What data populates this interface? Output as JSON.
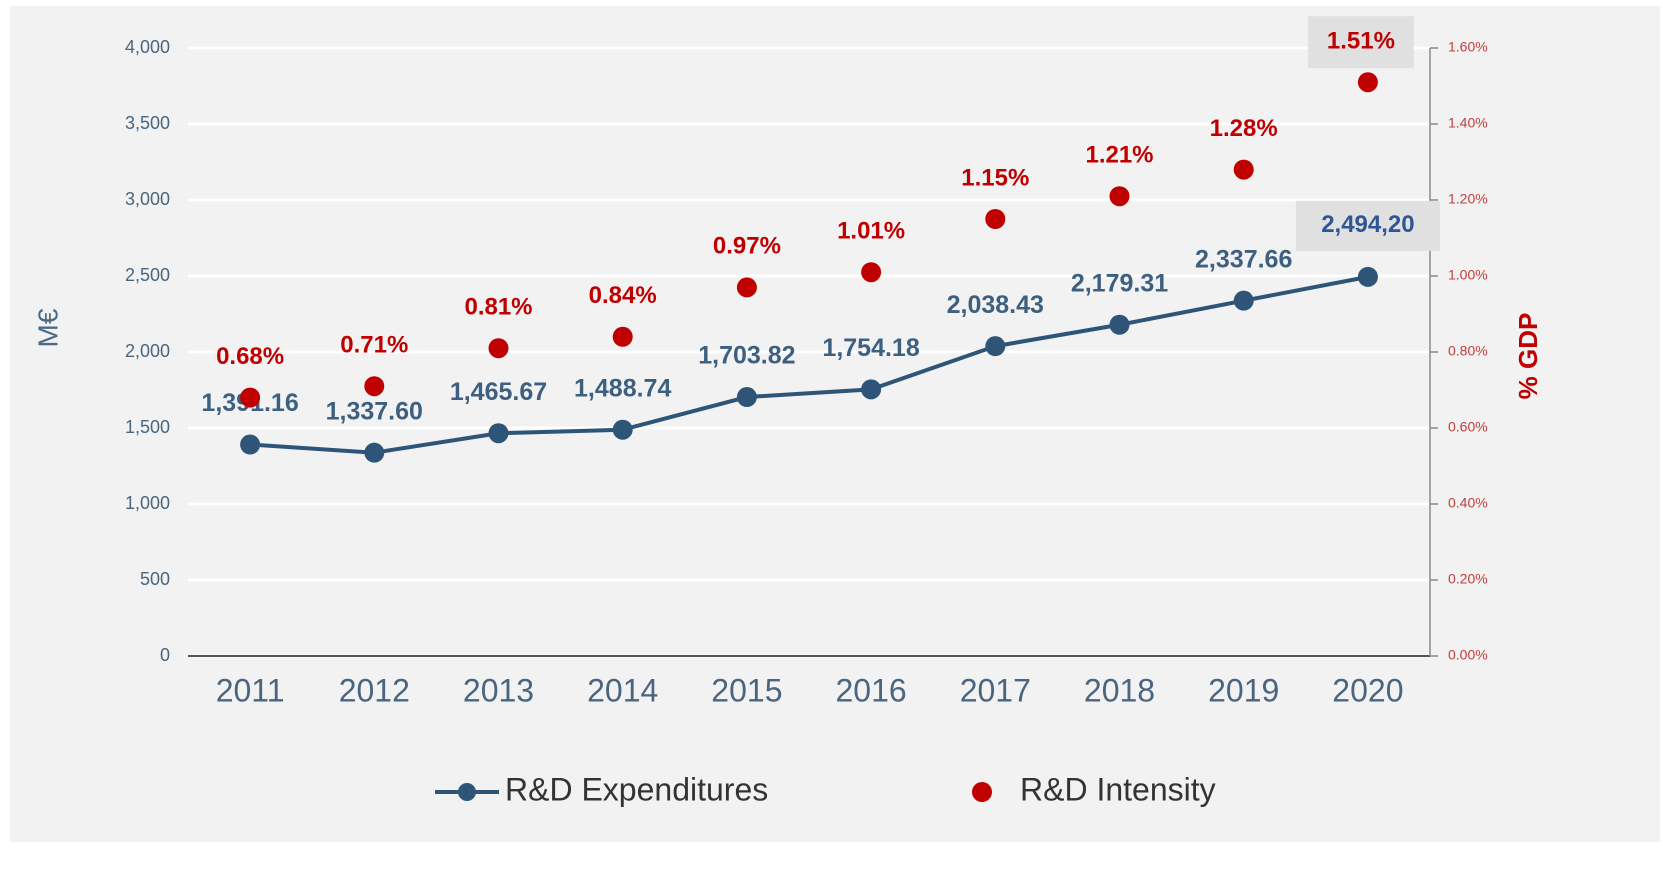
{
  "chart_data": {
    "type": "line",
    "categories": [
      "2011",
      "2012",
      "2013",
      "2014",
      "2015",
      "2016",
      "2017",
      "2018",
      "2019",
      "2020"
    ],
    "series": [
      {
        "name": "R&D Expenditures",
        "color": "#2e5578",
        "type": "line",
        "values": [
          1391.16,
          1337.6,
          1465.67,
          1488.74,
          1703.82,
          1754.18,
          2038.43,
          2179.31,
          2337.66,
          2494.2
        ],
        "value_labels": [
          "1,391.16",
          "1,337.60",
          "1,465.67",
          "1,488.74",
          "1,703.82",
          "1,754.18",
          "2,038.43",
          "2,179.31",
          "2,337.66",
          "2,494,20"
        ]
      },
      {
        "name": "R&D Intensity",
        "color": "#c00000",
        "type": "scatter",
        "axis": "y2",
        "values": [
          0.68,
          0.71,
          0.81,
          0.84,
          0.97,
          1.01,
          1.15,
          1.21,
          1.28,
          1.51
        ],
        "value_labels": [
          "0.68%",
          "0.71%",
          "0.81%",
          "0.84%",
          "0.97%",
          "1.01%",
          "1.15%",
          "1.21%",
          "1.28%",
          "1.51%"
        ]
      }
    ],
    "y_label": "M€",
    "y2_label": "% GDP",
    "ylim": [
      0,
      4000
    ],
    "yticks": [
      0,
      500,
      {
        "value": 1000,
        "label": "1,000"
      },
      {
        "value": 1500,
        "label": "1,500"
      },
      {
        "value": 2000,
        "label": "2,000"
      },
      {
        "value": 2500,
        "label": "2,500"
      },
      {
        "value": 3000,
        "label": "3,000"
      },
      {
        "value": 3500,
        "label": "3,500"
      },
      {
        "value": 4000,
        "label": "4,000"
      }
    ],
    "y2lim": [
      0,
      1.6
    ],
    "y2ticks": [
      {
        "value": 0,
        "label": "0.00%"
      },
      {
        "value": 0.2,
        "label": "0.20%"
      },
      {
        "value": 0.4,
        "label": "0.40%"
      },
      {
        "value": 0.6,
        "label": "0.60%"
      },
      {
        "value": 0.8,
        "label": "0.80%"
      },
      {
        "value": 1.0,
        "label": "1.00%"
      },
      {
        "value": 1.2,
        "label": "1.20%"
      },
      {
        "value": 1.4,
        "label": "1.40%"
      },
      {
        "value": 1.6,
        "label": "1.60%"
      }
    ],
    "grid": true,
    "legend": "bottom"
  }
}
